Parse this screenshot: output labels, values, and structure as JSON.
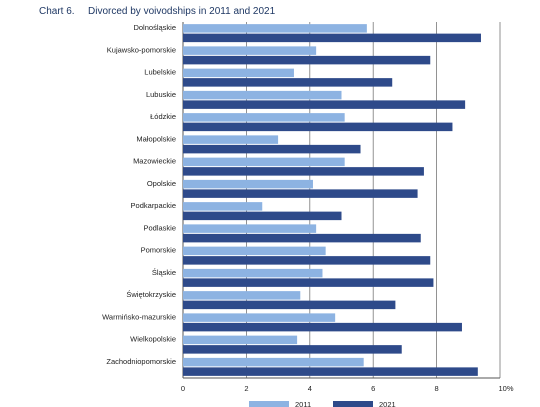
{
  "chart_data": {
    "type": "bar",
    "orientation": "horizontal",
    "label": "Chart 6.",
    "title": "Divorced by voivodships in 2011 and 2021",
    "categories": [
      "Dolnośląskie",
      "Kujawsko-pomorskie",
      "Lubelskie",
      "Lubuskie",
      "Łódzkie",
      "Małopolskie",
      "Mazowieckie",
      "Opolskie",
      "Podkarpackie",
      "Podlaskie",
      "Pomorskie",
      "Śląskie",
      "Świętokrzyskie",
      "Warmińsko-mazurskie",
      "Wielkopolskie",
      "Zachodniopomorskie"
    ],
    "series": [
      {
        "name": "2011",
        "color": "#8db3e2",
        "values": [
          5.8,
          4.2,
          3.5,
          5.0,
          5.1,
          3.0,
          5.1,
          4.1,
          2.5,
          4.2,
          4.5,
          4.4,
          3.7,
          4.8,
          3.6,
          5.7
        ]
      },
      {
        "name": "2021",
        "color": "#2e4a8a",
        "values": [
          9.4,
          7.8,
          6.6,
          8.9,
          8.5,
          5.6,
          7.6,
          7.4,
          5.0,
          7.5,
          7.8,
          7.9,
          6.7,
          8.8,
          6.9,
          9.3
        ]
      }
    ],
    "xlim": [
      0,
      10
    ],
    "xticks": [
      "0",
      "2",
      "4",
      "6",
      "8",
      "10%"
    ],
    "grid": true,
    "legend_position": "bottom"
  }
}
